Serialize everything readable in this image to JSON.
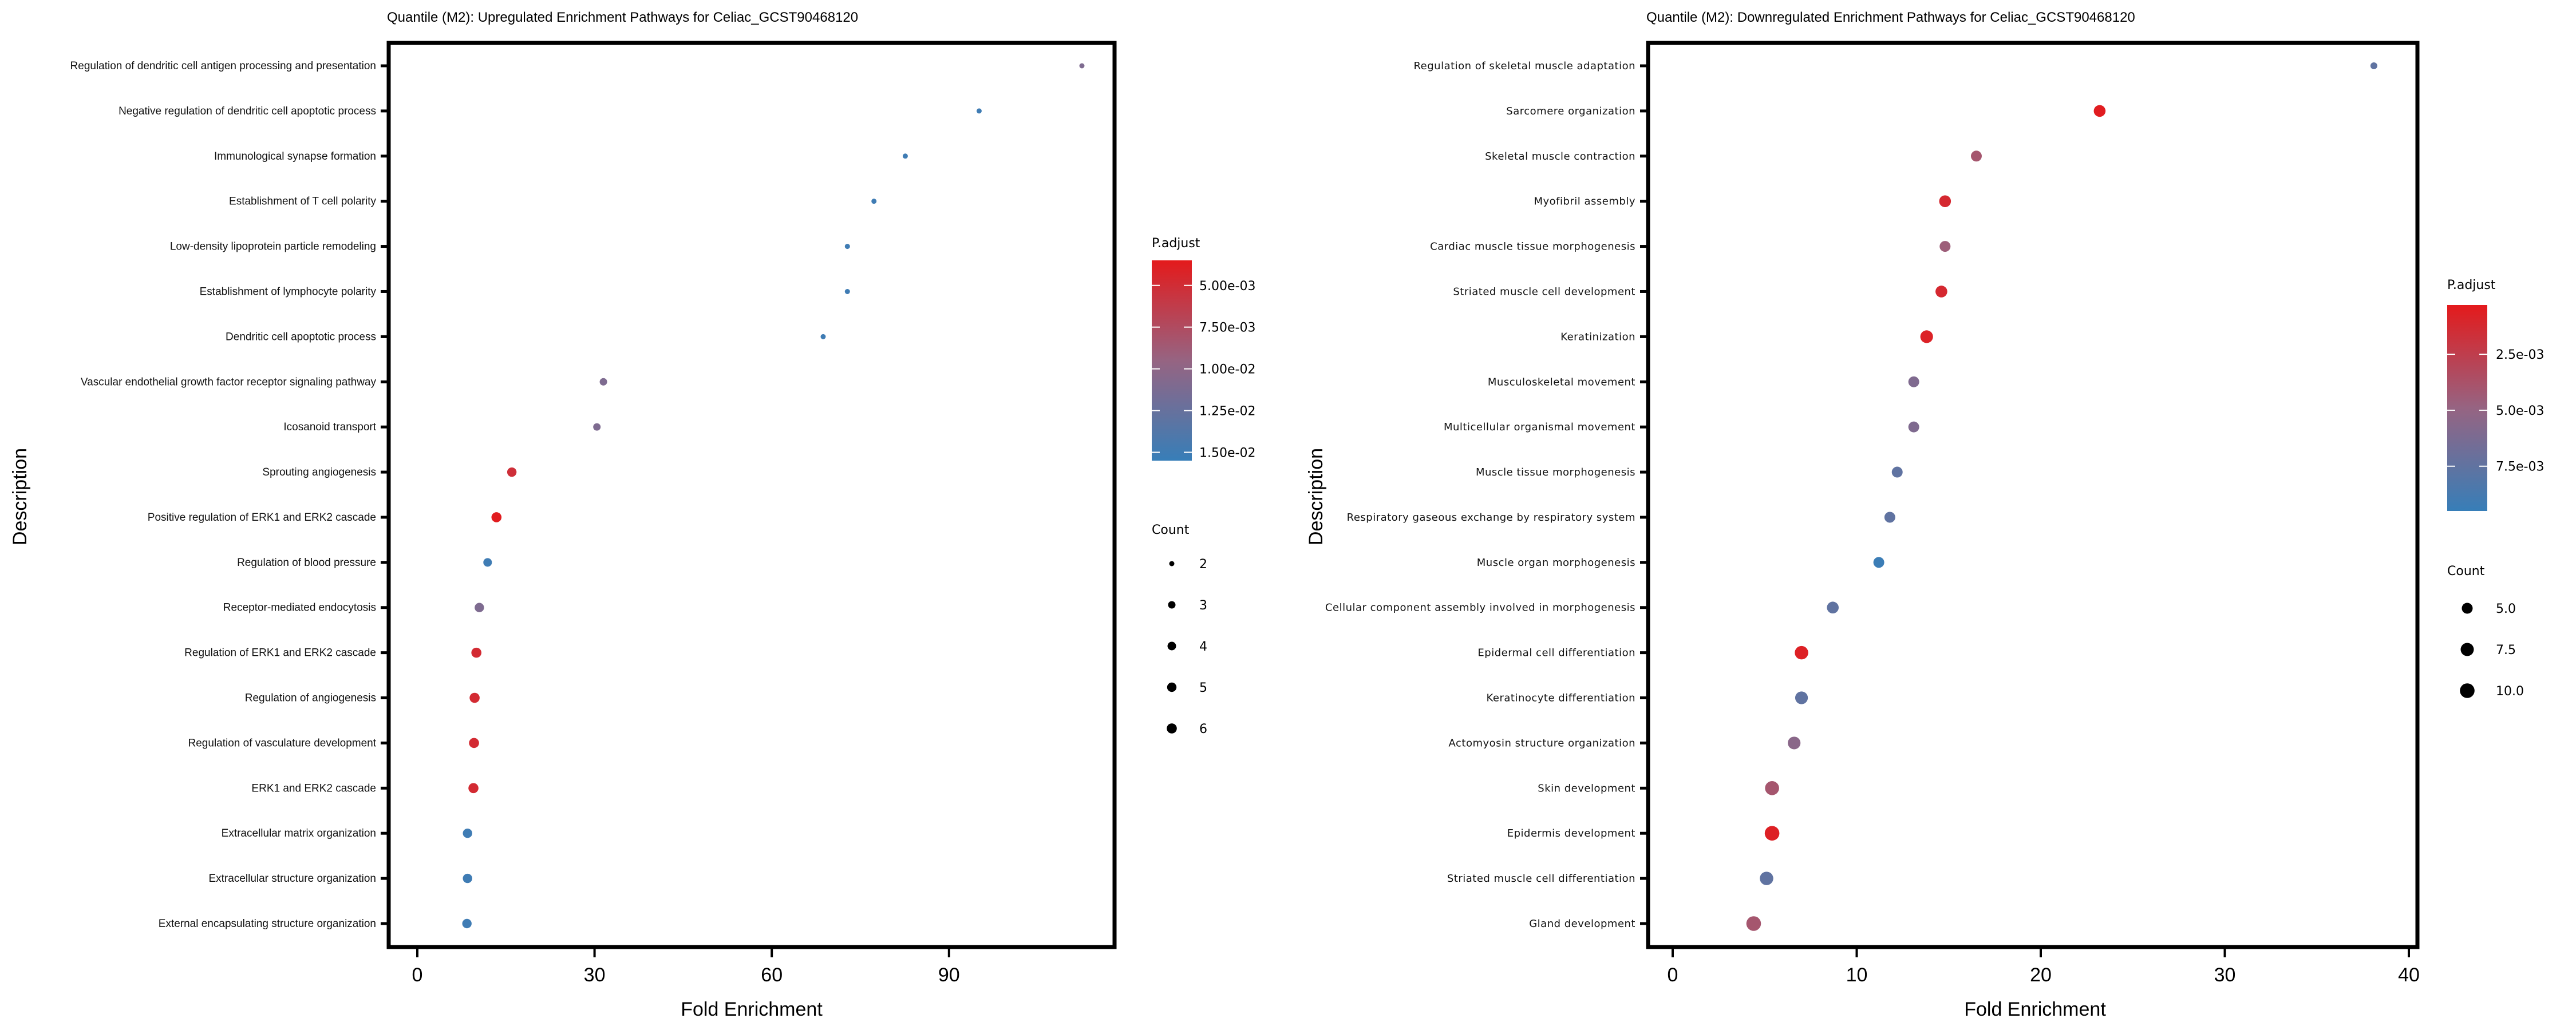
{
  "chart_data": [
    {
      "type": "scatter",
      "title": "Quantile (M2): Upregulated Enrichment Pathways for Celiac_GCST90468120",
      "xlabel": "Fold Enrichment",
      "ylabel": "Description",
      "xlim": [
        -5,
        118
      ],
      "xticks": [
        0,
        30,
        60,
        90
      ],
      "xtick_labels": [
        "0",
        "30",
        "60",
        "90"
      ],
      "grid": false,
      "color_legend": {
        "title": "P.adjust",
        "range": [
          0.0035,
          0.0155
        ],
        "low_color": "#e41a1c",
        "high_color": "#377eb8",
        "ticks": [
          0.005,
          0.0075,
          0.01,
          0.0125,
          0.015
        ],
        "tick_labels": [
          "5.00e-03",
          "7.50e-03",
          "1.00e-02",
          "1.25e-02",
          "1.50e-02"
        ]
      },
      "size_legend": {
        "title": "Count",
        "values": [
          2,
          3,
          4,
          5,
          6
        ],
        "labels": [
          "2",
          "3",
          "4",
          "5",
          "6"
        ]
      },
      "legend_position": "right",
      "categories": [
        "Regulation of dendritic cell antigen processing and presentation",
        "Negative regulation of dendritic cell apoptotic process",
        "Immunological synapse formation",
        "Establishment of T cell polarity",
        "Low-density lipoprotein particle remodeling",
        "Establishment of lymphocyte polarity",
        "Dendritic cell apoptotic process",
        "Vascular endothelial growth factor receptor signaling pathway",
        "Icosanoid transport",
        "Sprouting angiogenesis",
        "Positive regulation of ERK1 and ERK2 cascade",
        "Regulation of blood pressure",
        "Receptor-mediated endocytosis",
        "Regulation of ERK1 and ERK2 cascade",
        "Regulation of angiogenesis",
        "Regulation of vasculature development",
        "ERK1 and ERK2 cascade",
        "Extracellular matrix organization",
        "Extracellular structure organization",
        "External encapsulating structure organization"
      ],
      "fold_enrichment": [
        112.5,
        95.1,
        82.6,
        77.3,
        72.8,
        72.8,
        68.7,
        31.5,
        30.4,
        16.0,
        13.4,
        11.9,
        10.5,
        10.0,
        9.7,
        9.6,
        9.5,
        8.5,
        8.5,
        8.4
      ],
      "count": [
        2,
        2,
        2,
        2,
        2,
        2,
        2,
        3,
        3,
        5,
        6,
        4,
        5,
        6,
        6,
        6,
        6,
        5,
        5,
        5
      ],
      "p_adjust": [
        0.011,
        0.015,
        0.015,
        0.015,
        0.015,
        0.015,
        0.015,
        0.011,
        0.011,
        0.0052,
        0.0037,
        0.015,
        0.011,
        0.0048,
        0.0048,
        0.0048,
        0.0048,
        0.015,
        0.015,
        0.015
      ]
    },
    {
      "type": "scatter",
      "title": "Quantile (M2): Downregulated Enrichment Pathways for Celiac_GCST90468120",
      "xlabel": "Fold Enrichment",
      "ylabel": "Description",
      "xlim": [
        -2,
        40
      ],
      "xticks": [
        0,
        10,
        20,
        30,
        40
      ],
      "xtick_labels": [
        "0",
        "10",
        "20",
        "30",
        "40"
      ],
      "grid": false,
      "color_legend": {
        "title": "P.adjust",
        "range": [
          0.0003,
          0.0095
        ],
        "low_color": "#e41a1c",
        "high_color": "#377eb8",
        "ticks": [
          0.0025,
          0.005,
          0.0075
        ],
        "tick_labels": [
          "2.5e-03",
          "5.0e-03",
          "7.5e-03"
        ]
      },
      "size_legend": {
        "title": "Count",
        "values": [
          5.0,
          7.5,
          10.0
        ],
        "labels": [
          "5.0",
          "7.5",
          "10.0"
        ]
      },
      "legend_position": "right",
      "categories": [
        "Regulation of skeletal muscle adaptation",
        "Sarcomere organization",
        "Skeletal muscle contraction",
        "Myofibril assembly",
        "Cardiac muscle tissue morphogenesis",
        "Striated muscle cell development",
        "Keratinization",
        "Musculoskeletal movement",
        "Multicellular organismal movement",
        "Muscle tissue morphogenesis",
        "Respiratory gaseous exchange by respiratory system",
        "Muscle organ morphogenesis",
        "Cellular component assembly involved in morphogenesis",
        "Epidermal cell differentiation",
        "Keratinocyte differentiation",
        "Actomyosin structure organization",
        "Skin development",
        "Epidermis development",
        "Striated muscle cell differentiation",
        "Gland development"
      ],
      "fold_enrichment": [
        38.1,
        23.2,
        16.5,
        14.8,
        14.8,
        14.6,
        13.8,
        13.1,
        13.1,
        12.2,
        11.8,
        11.2,
        8.7,
        7.0,
        7.0,
        6.6,
        5.4,
        5.4,
        5.1,
        4.4
      ],
      "count": [
        2,
        6,
        5,
        6,
        5,
        6,
        7,
        5,
        5,
        5,
        5,
        5,
        6,
        8,
        7,
        7,
        9,
        10,
        8,
        10
      ],
      "p_adjust": [
        0.0075,
        0.0005,
        0.004,
        0.0012,
        0.0045,
        0.0012,
        0.0008,
        0.006,
        0.006,
        0.0075,
        0.0075,
        0.0093,
        0.0075,
        0.0007,
        0.0075,
        0.0055,
        0.004,
        0.0007,
        0.0075,
        0.004
      ]
    }
  ]
}
